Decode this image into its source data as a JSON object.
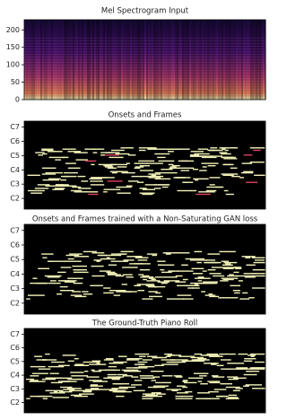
{
  "chart_data": [
    {
      "type": "heatmap",
      "title": "Mel Spectrogram Input",
      "colormap": "magma",
      "ylim": [
        0,
        229
      ],
      "yticks": [
        0,
        50,
        100,
        150,
        200
      ]
    },
    {
      "type": "pianoroll",
      "title": "Onsets and Frames",
      "ylim": [
        27,
        101
      ],
      "yticks": [
        {
          "value": 36,
          "label": "C2"
        },
        {
          "value": 48,
          "label": "C3"
        },
        {
          "value": 60,
          "label": "C4"
        },
        {
          "value": 72,
          "label": "C5"
        },
        {
          "value": 84,
          "label": "C6"
        },
        {
          "value": 96,
          "label": "C7"
        }
      ]
    },
    {
      "type": "pianoroll",
      "title": "Onsets and Frames trained with a Non-Saturating GAN loss",
      "ylim": [
        27,
        101
      ],
      "yticks": [
        {
          "value": 36,
          "label": "C2"
        },
        {
          "value": 48,
          "label": "C3"
        },
        {
          "value": 60,
          "label": "C4"
        },
        {
          "value": 72,
          "label": "C5"
        },
        {
          "value": 84,
          "label": "C6"
        },
        {
          "value": 96,
          "label": "C7"
        }
      ]
    },
    {
      "type": "pianoroll",
      "title": "The Ground-Truth Piano Roll",
      "ylim": [
        27,
        101
      ],
      "yticks": [
        {
          "value": 36,
          "label": "C2"
        },
        {
          "value": 48,
          "label": "C3"
        },
        {
          "value": 60,
          "label": "C4"
        },
        {
          "value": 72,
          "label": "C5"
        },
        {
          "value": 84,
          "label": "C6"
        },
        {
          "value": 96,
          "label": "C7"
        }
      ]
    }
  ]
}
